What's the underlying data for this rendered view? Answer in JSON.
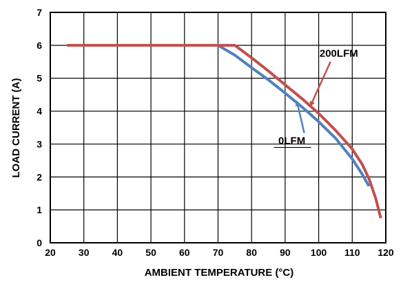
{
  "chart_data": {
    "type": "line",
    "title": "",
    "xlabel": "AMBIENT TEMPERATURE (°C)",
    "ylabel": "LOAD CURRENT (A)",
    "xlim": [
      20,
      120
    ],
    "ylim": [
      0,
      7
    ],
    "xticks": [
      20,
      30,
      40,
      50,
      60,
      70,
      80,
      90,
      100,
      110,
      120
    ],
    "yticks": [
      0,
      1,
      2,
      3,
      4,
      5,
      6,
      7
    ],
    "grid": true,
    "legend": "none",
    "series": [
      {
        "name": "200LFM",
        "color": "#c0504d",
        "x": [
          25,
          75,
          80,
          85,
          90,
          95,
          100,
          105,
          110,
          113,
          115,
          117,
          118.5
        ],
        "y": [
          6.0,
          6.0,
          5.62,
          5.22,
          4.8,
          4.38,
          3.93,
          3.42,
          2.85,
          2.38,
          1.95,
          1.35,
          0.75
        ]
      },
      {
        "name": "0LFM",
        "color": "#4f81bd",
        "x": [
          70,
          75,
          80,
          85,
          90,
          95,
          100,
          105,
          110,
          113,
          115
        ],
        "y": [
          6.0,
          5.7,
          5.32,
          4.95,
          4.55,
          4.13,
          3.68,
          3.18,
          2.55,
          2.08,
          1.72
        ]
      }
    ],
    "annotations": [
      {
        "text": "200LFM",
        "series": "200LFM",
        "label_x": 106,
        "label_y": 5.65,
        "arrow_x": 97.5,
        "arrow_y": 4.15
      },
      {
        "text": "0LFM",
        "series": "0LFM",
        "label_x": 92,
        "label_y": 3.0,
        "arrow_x": 93.5,
        "arrow_y": 4.3
      }
    ]
  }
}
